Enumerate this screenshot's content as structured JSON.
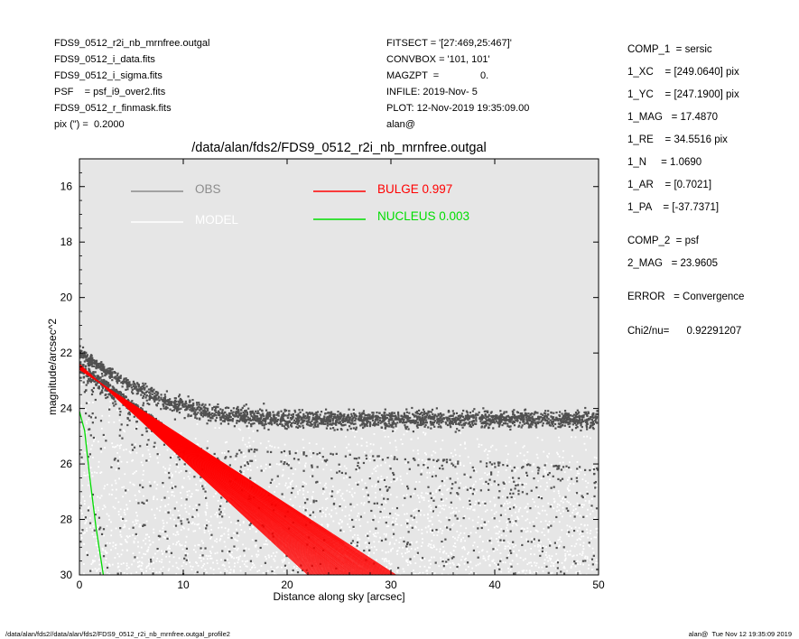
{
  "header_left": [
    "FDS9_0512_r2i_nb_mrnfree.outgal",
    "FDS9_0512_i_data.fits",
    "FDS9_0512_i_sigma.fits",
    "PSF    = psf_i9_over2.fits",
    "FDS9_0512_r_finmask.fits",
    "pix (\") =  0.2000"
  ],
  "header_mid": [
    "FITSECT = '[27:469,25:467]'",
    "CONVBOX = '101, 101'",
    "MAGZPT  =               0.",
    "INFILE: 2019-Nov- 5",
    "PLOT: 12-Nov-2019 19:35:09.00",
    "alan@"
  ],
  "params": [
    "COMP_1  = sersic",
    "1_XC    = [249.0640] pix",
    "1_YC    = [247.1900] pix",
    "1_MAG   = 17.4870",
    "1_RE    = 34.5516 pix",
    "1_N     = 1.0690",
    "1_AR    = [0.7021]",
    "1_PA    = [-37.7371]",
    "COMP_2  = psf",
    "2_MAG   = 23.9605",
    "ERROR   = Convergence",
    "Chi2/nu=      0.92291207"
  ],
  "footer_left": "/data/alan/fds2//data/alan/fds2/FDS9_0512_r2i_nb_mrnfree.outgal_profile2",
  "footer_right": "alan@  Tue Nov 12 19:35:09 2019",
  "chart_data": {
    "type": "scatter",
    "title": "/data/alan/fds2/FDS9_0512_r2i_nb_mrnfree.outgal",
    "xlabel": "Distance along sky [arcsec]",
    "ylabel": "magnitude/arcsec^2",
    "xlim": [
      0,
      50
    ],
    "ylim": [
      30,
      15
    ],
    "y_inverted": true,
    "xticks": [
      0,
      10,
      20,
      30,
      40,
      50
    ],
    "yticks": [
      16,
      18,
      20,
      22,
      24,
      26,
      28,
      30
    ],
    "background": "#e6e6e6",
    "legend": [
      {
        "label": "OBS",
        "color": "#8c8c8c",
        "position": "top-left"
      },
      {
        "label": "MODEL",
        "color": "#ffffff",
        "position": "top-left"
      },
      {
        "label": "BULGE  0.997",
        "color": "#ff0000",
        "position": "top-center"
      },
      {
        "label": "NUCLEUS  0.003",
        "color": "#00dd00",
        "position": "top-center"
      }
    ],
    "series": [
      {
        "name": "OBS",
        "color": "#505050",
        "kind": "points",
        "envelope": {
          "start_mag": 22.1,
          "core_scale_arcsec": 6,
          "sky_mag": 24.4,
          "scatter_mag": 0.15,
          "x_max": 50
        }
      },
      {
        "name": "MODEL",
        "color": "#ffffff",
        "kind": "points",
        "envelope": {
          "start_mag": 22.4,
          "x_max": 50,
          "fill_to_mag": 30
        }
      },
      {
        "name": "BULGE  0.997",
        "color": "#ff0000",
        "kind": "band",
        "lower_edge": [
          [
            0,
            22.4
          ],
          [
            22,
            30
          ]
        ],
        "upper_edge": [
          [
            0,
            22.6
          ],
          [
            30.5,
            30
          ]
        ]
      },
      {
        "name": "NUCLEUS  0.003",
        "color": "#00dd00",
        "kind": "line",
        "points": [
          [
            0,
            24.1
          ],
          [
            0.5,
            24.8
          ],
          [
            1.0,
            26.5
          ],
          [
            1.6,
            28.3
          ],
          [
            2.3,
            30.0
          ]
        ]
      }
    ]
  }
}
